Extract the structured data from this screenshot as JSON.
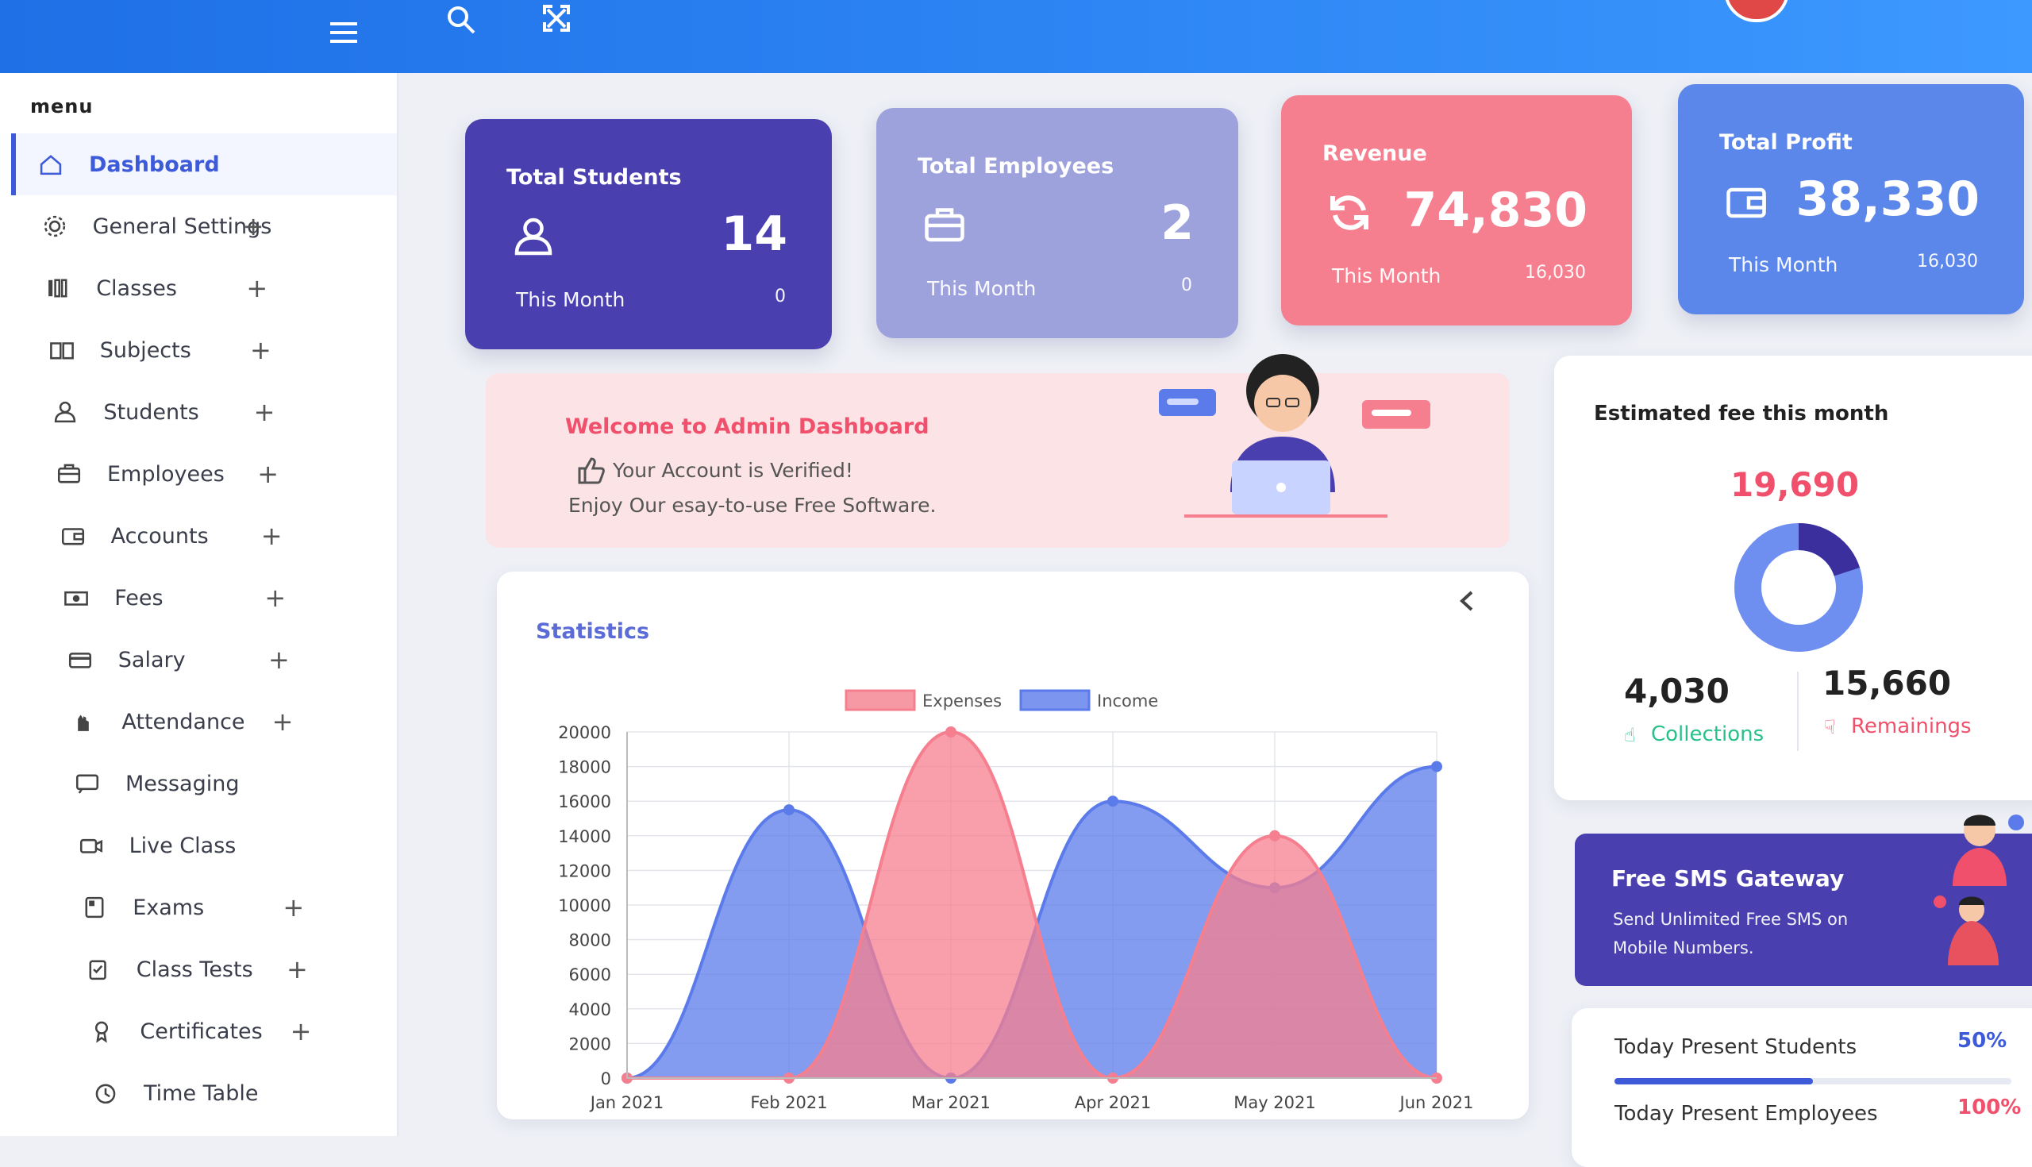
{
  "topbar": {
    "menu_icon": "hamburger-icon",
    "search_icon": "search-icon",
    "fullscreen_icon": "fullscreen-icon"
  },
  "sidebar": {
    "title": "menu",
    "items": [
      {
        "label": "Dashboard",
        "icon": "home-icon",
        "expandable": false
      },
      {
        "label": "General Settings",
        "icon": "gear-icon",
        "expandable": true
      },
      {
        "label": "Classes",
        "icon": "classes-icon",
        "expandable": true
      },
      {
        "label": "Subjects",
        "icon": "book-icon",
        "expandable": true
      },
      {
        "label": "Students",
        "icon": "user-icon",
        "expandable": true
      },
      {
        "label": "Employees",
        "icon": "briefcase-icon",
        "expandable": true
      },
      {
        "label": "Accounts",
        "icon": "wallet-icon",
        "expandable": true
      },
      {
        "label": "Fees",
        "icon": "money-icon",
        "expandable": true
      },
      {
        "label": "Salary",
        "icon": "card-icon",
        "expandable": true
      },
      {
        "label": "Attendance",
        "icon": "hand-icon",
        "expandable": true
      },
      {
        "label": "Messaging",
        "icon": "message-icon",
        "expandable": false
      },
      {
        "label": "Live Class",
        "icon": "video-icon",
        "expandable": false
      },
      {
        "label": "Exams",
        "icon": "exam-icon",
        "expandable": true
      },
      {
        "label": "Class Tests",
        "icon": "test-icon",
        "expandable": true
      },
      {
        "label": "Certificates",
        "icon": "certificate-icon",
        "expandable": true
      },
      {
        "label": "Time Table",
        "icon": "clock-icon",
        "expandable": false
      }
    ]
  },
  "cards": [
    {
      "title": "Total Students",
      "value": "14",
      "month_label": "This Month",
      "sub": "0",
      "icon": "user-icon",
      "color": "#4a3fae"
    },
    {
      "title": "Total Employees",
      "value": "2",
      "month_label": "This Month",
      "sub": "0",
      "icon": "briefcase-icon",
      "color": "#9ea2dc"
    },
    {
      "title": "Revenue",
      "value": "74,830",
      "month_label": "This Month",
      "sub": "16,030",
      "icon": "refresh-icon",
      "color": "#f57f8f"
    },
    {
      "title": "Total Profit",
      "value": "38,330",
      "month_label": "This Month",
      "sub": "16,030",
      "icon": "wallet-icon",
      "color": "#5b86ea"
    }
  ],
  "welcome": {
    "title": "Welcome to Admin Dashboard",
    "verified": "Your Account is Verified!",
    "enjoy": "Enjoy Our esay-to-use Free Software."
  },
  "statistics": {
    "title": "Statistics",
    "collapse_icon": "chevron-left-icon"
  },
  "chart_data": {
    "type": "area",
    "title": "",
    "categories": [
      "Jan 2021",
      "Feb 2021",
      "Mar 2021",
      "Apr 2021",
      "May 2021",
      "Jun 2021"
    ],
    "series": [
      {
        "name": "Expenses",
        "color": "#f57f8f",
        "values": [
          0,
          0,
          20000,
          0,
          14000,
          0
        ]
      },
      {
        "name": "Income",
        "color": "#5b7bea",
        "values": [
          0,
          15500,
          0,
          16000,
          11000,
          18000
        ]
      }
    ],
    "yticks": [
      "0",
      "2000",
      "4000",
      "6000",
      "8000",
      "10000",
      "12000",
      "14000",
      "16000",
      "18000",
      "20000"
    ],
    "ylim": [
      0,
      20000
    ],
    "grid": true,
    "legend": "top"
  },
  "fee": {
    "title": "Estimated fee this month",
    "total": "19,690",
    "collections_value": "4,030",
    "collections_label": "Collections",
    "remainings_value": "15,660",
    "remainings_label": "Remainings",
    "collected_fraction": 0.2
  },
  "sms": {
    "title": "Free SMS Gateway",
    "desc": "Send Unlimited Free SMS on Mobile Numbers."
  },
  "present": [
    {
      "label": "Today Present Students",
      "pct": "50%",
      "fraction": 0.5,
      "color": "#3d5bd9"
    },
    {
      "label": "Today Present Employees",
      "pct": "100%",
      "fraction": 1.0,
      "color": "#f0506b"
    }
  ]
}
